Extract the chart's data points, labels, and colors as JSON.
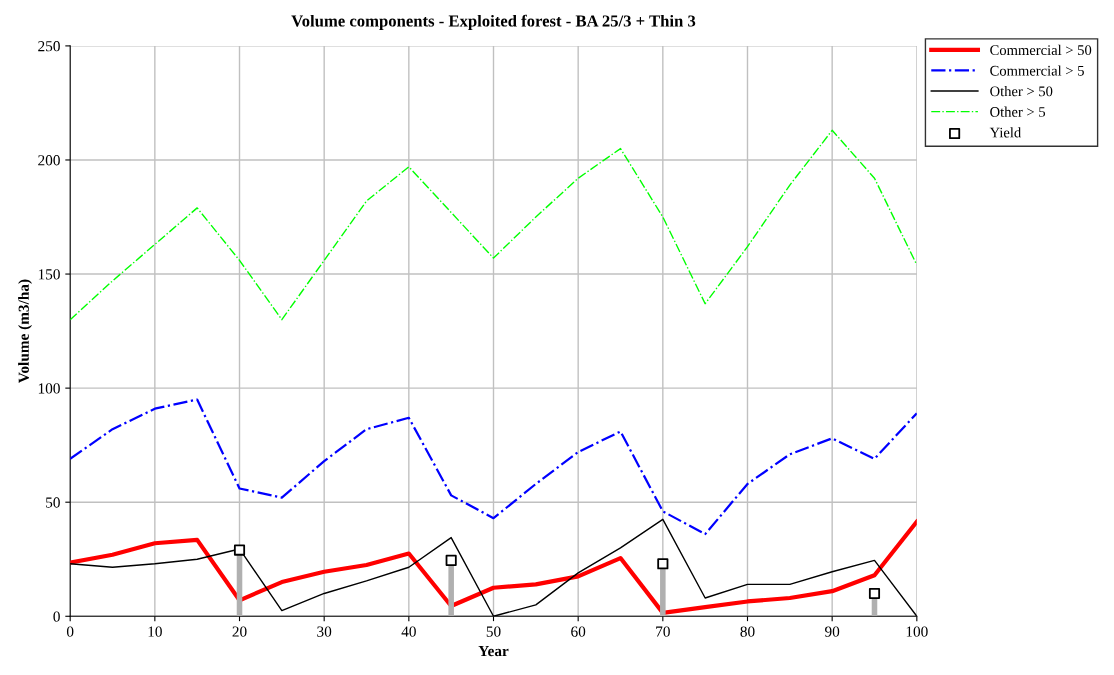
{
  "chart_data": {
    "type": "line",
    "title": "Volume components - Exploited forest - BA 25/3 + Thin 3",
    "xlabel": "Year",
    "ylabel": "Volume (m3/ha)",
    "x": [
      0,
      5,
      10,
      15,
      20,
      25,
      30,
      35,
      40,
      45,
      50,
      55,
      60,
      65,
      70,
      75,
      80,
      85,
      90,
      95,
      100
    ],
    "series": [
      {
        "name": "Commercial > 50",
        "color": "#ff0000",
        "line_style": "solid",
        "values": [
          23.5,
          27,
          32,
          33.5,
          7,
          15,
          19.5,
          22.5,
          27.5,
          4.5,
          12.5,
          14,
          17.5,
          25.5,
          1.5,
          4,
          6.5,
          8,
          11,
          18,
          41.5
        ]
      },
      {
        "name": "Commercial > 5",
        "color": "#0000ff",
        "line_style": "dashdot",
        "values": [
          69,
          82,
          91,
          95,
          56,
          52,
          68,
          82,
          87,
          53,
          43,
          58,
          72,
          81,
          46,
          36,
          58,
          71,
          78,
          69,
          89
        ]
      },
      {
        "name": "Other > 50",
        "color": "#000000",
        "line_style": "solid",
        "values": [
          23,
          21.5,
          23,
          25,
          29.5,
          2.5,
          10,
          15.5,
          21.5,
          34.5,
          0,
          5,
          19,
          30,
          42.5,
          8,
          14,
          14,
          19.5,
          24.5,
          0
        ]
      },
      {
        "name": "Other > 5",
        "color": "#00ff00",
        "line_style": "dashdot",
        "values": [
          130,
          147,
          163,
          179,
          156,
          130,
          156,
          182,
          197,
          177,
          157,
          175,
          192,
          205,
          175,
          137,
          162,
          189,
          213,
          192,
          154
        ]
      },
      {
        "name": "Yield",
        "type": "scatter",
        "marker": "square",
        "color": "#000000",
        "x": [
          20,
          45,
          70,
          95
        ],
        "values": [
          29,
          24.5,
          23,
          10
        ],
        "errors": [
          [
            0,
            29
          ],
          [
            0,
            24.5
          ],
          [
            0,
            23
          ],
          [
            0,
            10
          ]
        ]
      }
    ],
    "xlim": [
      0,
      100
    ],
    "xticks": [
      0,
      10,
      20,
      30,
      40,
      50,
      60,
      70,
      80,
      90,
      100
    ],
    "ylim": [
      0,
      250
    ],
    "yticks": [
      0,
      50,
      100,
      150,
      200,
      250
    ],
    "grid": true,
    "legend": "top right"
  }
}
